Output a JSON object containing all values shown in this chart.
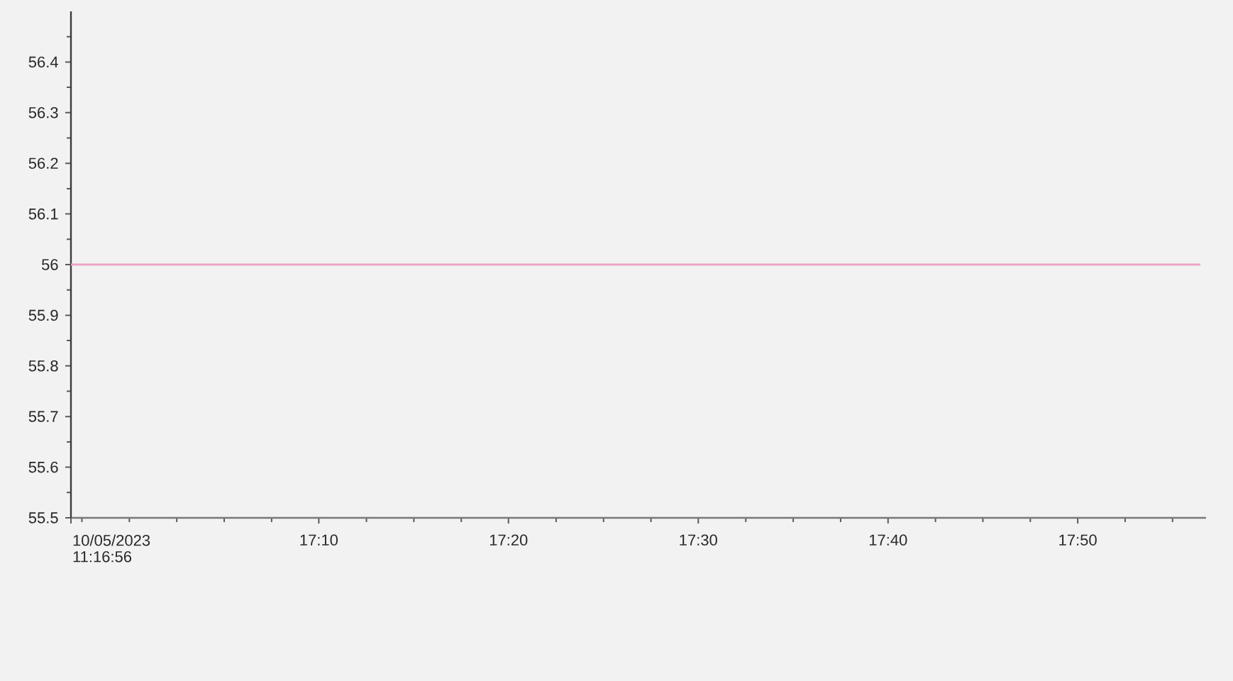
{
  "chart_data": {
    "type": "line",
    "x": [
      16.949,
      17.941
    ],
    "values": [
      56,
      56
    ],
    "color": "#eea2c5",
    "xlim": [
      16.949,
      17.946
    ],
    "ylim": [
      55.5,
      56.5
    ],
    "xticks": [
      {
        "value": 16.949,
        "label": "10/05/2023 11:16:56"
      },
      {
        "value": 17.1667,
        "label": "17:10"
      },
      {
        "value": 17.3333,
        "label": "17:20"
      },
      {
        "value": 17.5,
        "label": "17:30"
      },
      {
        "value": 17.6667,
        "label": "17:40"
      },
      {
        "value": 17.8333,
        "label": "17:50"
      }
    ],
    "yticks": [
      55.5,
      55.6,
      55.7,
      55.8,
      55.9,
      56,
      56.1,
      56.2,
      56.3,
      56.4
    ]
  }
}
